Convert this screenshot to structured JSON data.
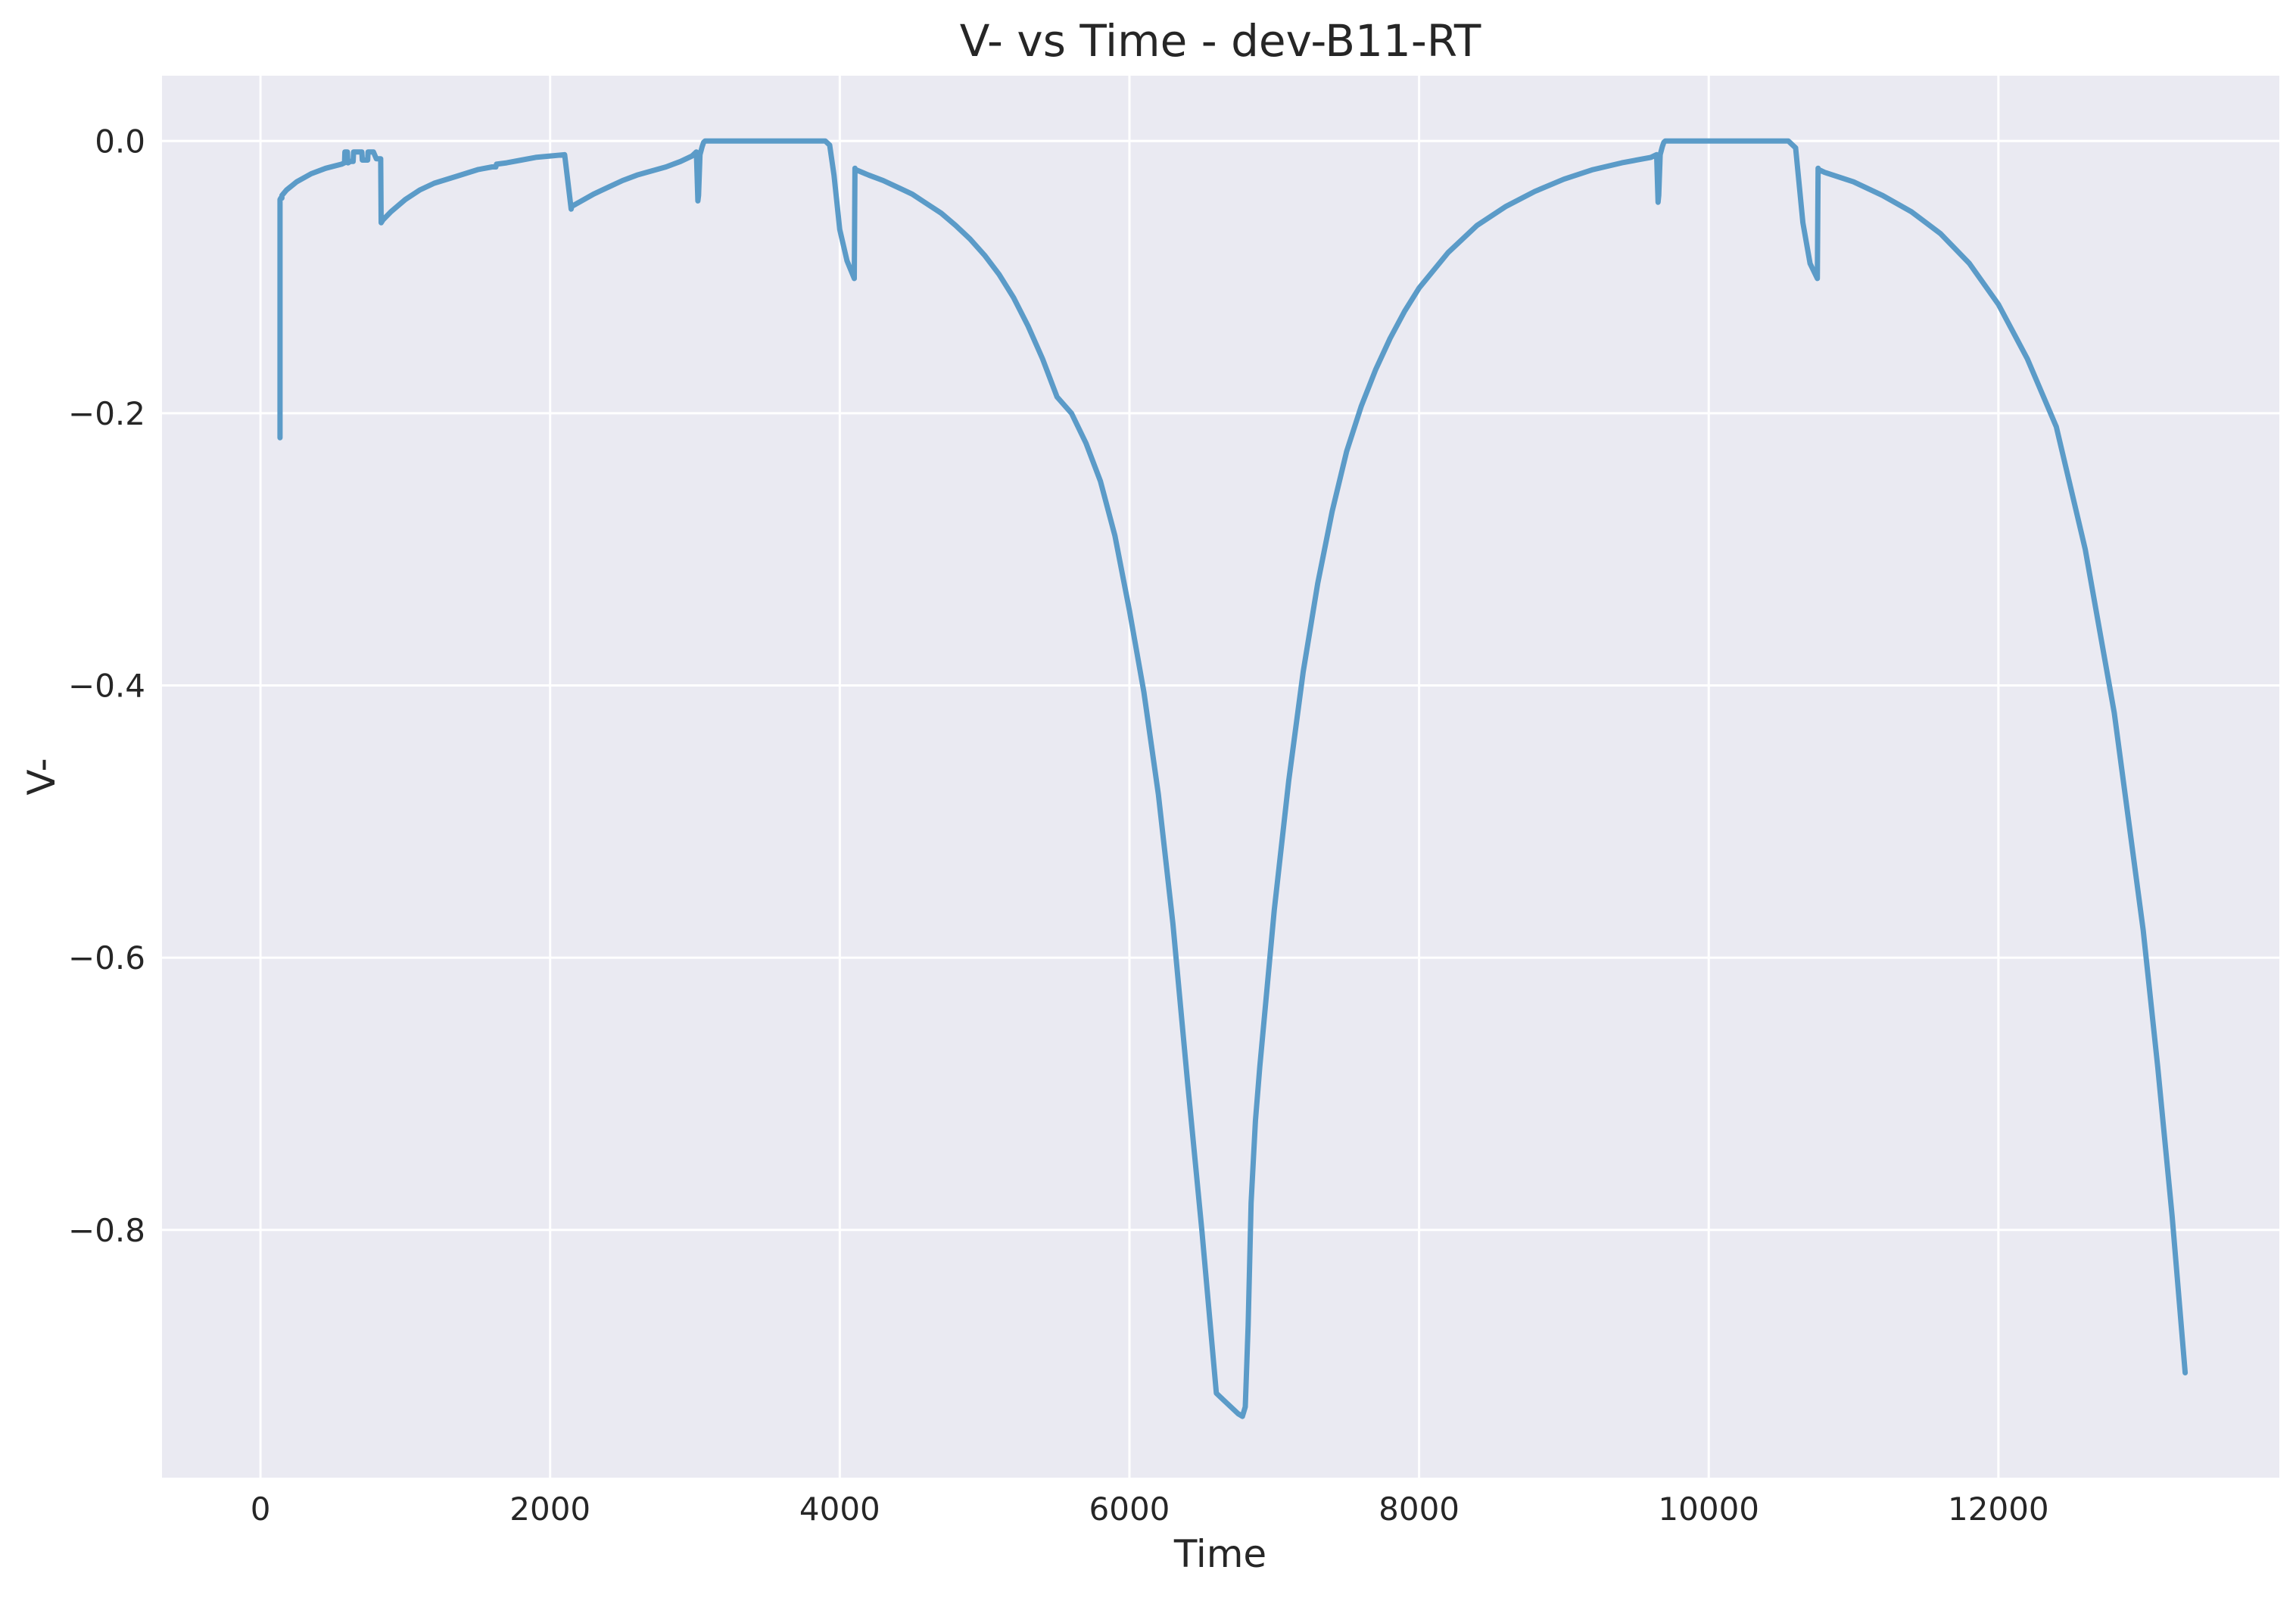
{
  "chart_data": {
    "type": "line",
    "title": "V- vs Time - dev-B11-RT",
    "xlabel": "Time",
    "ylabel": "V-",
    "xlim": [
      -680,
      13940
    ],
    "ylim": [
      -0.982,
      0.048
    ],
    "grid": true,
    "legend": "none",
    "xticks": [
      0,
      2000,
      4000,
      6000,
      8000,
      10000,
      12000
    ],
    "xtick_labels": [
      "0",
      "2000",
      "4000",
      "6000",
      "8000",
      "10000",
      "12000"
    ],
    "yticks": [
      0.0,
      -0.2,
      -0.4,
      -0.6,
      -0.8
    ],
    "ytick_labels": [
      "0.0",
      "−0.2",
      "−0.4",
      "−0.6",
      "−0.8"
    ],
    "colors": {
      "line": "#5b9bc8",
      "plot_background": "#eaeaf2",
      "grid": "#ffffff",
      "text": "#262626"
    },
    "series": [
      {
        "x": [
          135,
          135,
          140,
          148,
          148,
          180,
          250,
          350,
          450,
          560,
          580,
          583,
          600,
          603,
          605,
          620,
          640,
          643,
          700,
          703,
          715,
          720,
          740,
          743,
          780,
          800,
          803,
          810,
          830,
          833,
          845,
          900,
          1000,
          1100,
          1200,
          1350,
          1500,
          1600,
          1625,
          1630,
          1700,
          1800,
          1900,
          2000,
          2100,
          2145,
          2150,
          2200,
          2300,
          2400,
          2500,
          2600,
          2700,
          2800,
          2900,
          2980,
          3010,
          3020,
          3025,
          3035,
          3050,
          3060,
          3070,
          3075,
          3100,
          3200,
          3300,
          3500,
          3700,
          3900,
          3930,
          3960,
          4000,
          4050,
          4100,
          4105,
          4110,
          4200,
          4300,
          4400,
          4500,
          4600,
          4700,
          4800,
          4900,
          5000,
          5100,
          5200,
          5300,
          5400,
          5500,
          5600,
          5700,
          5800,
          5900,
          6000,
          6100,
          6200,
          6300,
          6400,
          6500,
          6600,
          6650,
          6700,
          6750,
          6780,
          6800,
          6820,
          6840,
          6870,
          6900,
          7000,
          7100,
          7200,
          7300,
          7400,
          7500,
          7600,
          7700,
          7800,
          7900,
          8000,
          8200,
          8400,
          8600,
          8800,
          9000,
          9200,
          9400,
          9600,
          9640,
          9650,
          9655,
          9665,
          9680,
          9690,
          9700,
          9720,
          9800,
          10000,
          10200,
          10400,
          10550,
          10600,
          10650,
          10700,
          10750,
          10755,
          10760,
          10800,
          11000,
          11200,
          11400,
          11600,
          11800,
          12000,
          12200,
          12400,
          12600,
          12800,
          13000,
          13100,
          13200,
          13290
        ],
        "y": [
          -0.218,
          -0.043,
          -0.042,
          -0.042,
          -0.04,
          -0.036,
          -0.03,
          -0.024,
          -0.02,
          -0.017,
          -0.016,
          -0.008,
          -0.008,
          -0.016,
          -0.016,
          -0.015,
          -0.015,
          -0.008,
          -0.008,
          -0.014,
          -0.014,
          -0.014,
          -0.014,
          -0.008,
          -0.008,
          -0.013,
          -0.013,
          -0.013,
          -0.013,
          -0.06,
          -0.058,
          -0.052,
          -0.043,
          -0.036,
          -0.031,
          -0.026,
          -0.021,
          -0.019,
          -0.019,
          -0.017,
          -0.016,
          -0.014,
          -0.012,
          -0.011,
          -0.01,
          -0.05,
          -0.048,
          -0.045,
          -0.039,
          -0.034,
          -0.029,
          -0.025,
          -0.022,
          -0.019,
          -0.015,
          -0.011,
          -0.008,
          -0.044,
          -0.04,
          -0.01,
          -0.004,
          -0.001,
          0.0,
          0.0,
          0.0,
          0.0,
          0.0,
          0.0,
          0.0,
          0.0,
          -0.003,
          -0.025,
          -0.065,
          -0.088,
          -0.101,
          -0.02,
          -0.021,
          -0.025,
          -0.029,
          -0.034,
          -0.039,
          -0.046,
          -0.053,
          -0.062,
          -0.072,
          -0.084,
          -0.098,
          -0.115,
          -0.136,
          -0.16,
          -0.188,
          -0.2,
          -0.222,
          -0.25,
          -0.29,
          -0.345,
          -0.405,
          -0.48,
          -0.575,
          -0.69,
          -0.8,
          -0.92,
          -0.925,
          -0.93,
          -0.935,
          -0.937,
          -0.93,
          -0.87,
          -0.78,
          -0.72,
          -0.68,
          -0.565,
          -0.47,
          -0.39,
          -0.325,
          -0.272,
          -0.228,
          -0.195,
          -0.168,
          -0.145,
          -0.125,
          -0.108,
          -0.082,
          -0.062,
          -0.048,
          -0.037,
          -0.028,
          -0.021,
          -0.016,
          -0.012,
          -0.01,
          -0.045,
          -0.04,
          -0.01,
          -0.004,
          -0.001,
          0.0,
          0.0,
          0.0,
          0.0,
          0.0,
          0.0,
          0.0,
          -0.005,
          -0.06,
          -0.09,
          -0.101,
          -0.02,
          -0.021,
          -0.023,
          -0.03,
          -0.04,
          -0.052,
          -0.068,
          -0.09,
          -0.12,
          -0.16,
          -0.21,
          -0.3,
          -0.42,
          -0.58,
          -0.68,
          -0.79,
          -0.905
        ]
      }
    ]
  }
}
